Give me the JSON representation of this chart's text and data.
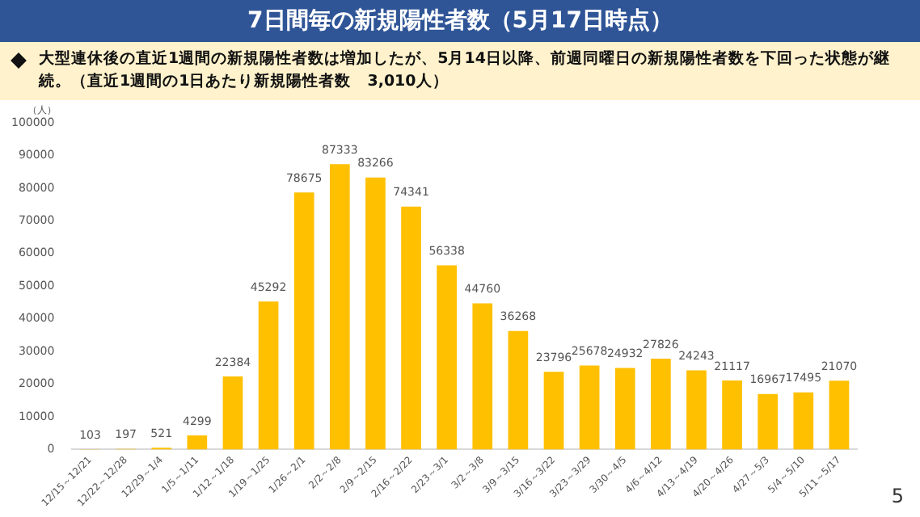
{
  "chart_data": {
    "type": "bar",
    "title": "7日間毎の新規陽性者数（5月17日時点）",
    "subtitle": "大型連休後の直近1週間の新規陽性者数は増加したが、5月14日以降、前週同曜日の新規陽性者数を下回った状態が継続。（直近1週間の1日あたり新規陽性者数　3,010人）",
    "ylabel": "（人）",
    "categories": [
      "12/15～12/21",
      "12/22～12/28",
      "12/29～1/4",
      "1/5～1/11",
      "1/12～1/18",
      "1/19～1/25",
      "1/26～2/1",
      "2/2～2/8",
      "2/9～2/15",
      "2/16～2/22",
      "2/23～3/1",
      "3/2～3/8",
      "3/9～3/15",
      "3/16～3/22",
      "3/23～3/29",
      "3/30～4/5",
      "4/6～4/12",
      "4/13～4/19",
      "4/20～4/26",
      "4/27～5/3",
      "5/4～5/10",
      "5/11～5/17"
    ],
    "values": [
      103,
      197,
      521,
      4299,
      22384,
      45292,
      78675,
      87333,
      83266,
      74341,
      56338,
      44760,
      36268,
      23796,
      25678,
      24932,
      27826,
      24243,
      21117,
      16967,
      17495,
      21070
    ],
    "color": "#ffc000",
    "ylim": [
      0,
      100000
    ],
    "yticks": [
      0,
      10000,
      20000,
      30000,
      40000,
      50000,
      60000,
      70000,
      80000,
      90000,
      100000
    ],
    "data_labels": true,
    "grid": false,
    "legend": false,
    "annotations": [
      "5"
    ]
  }
}
